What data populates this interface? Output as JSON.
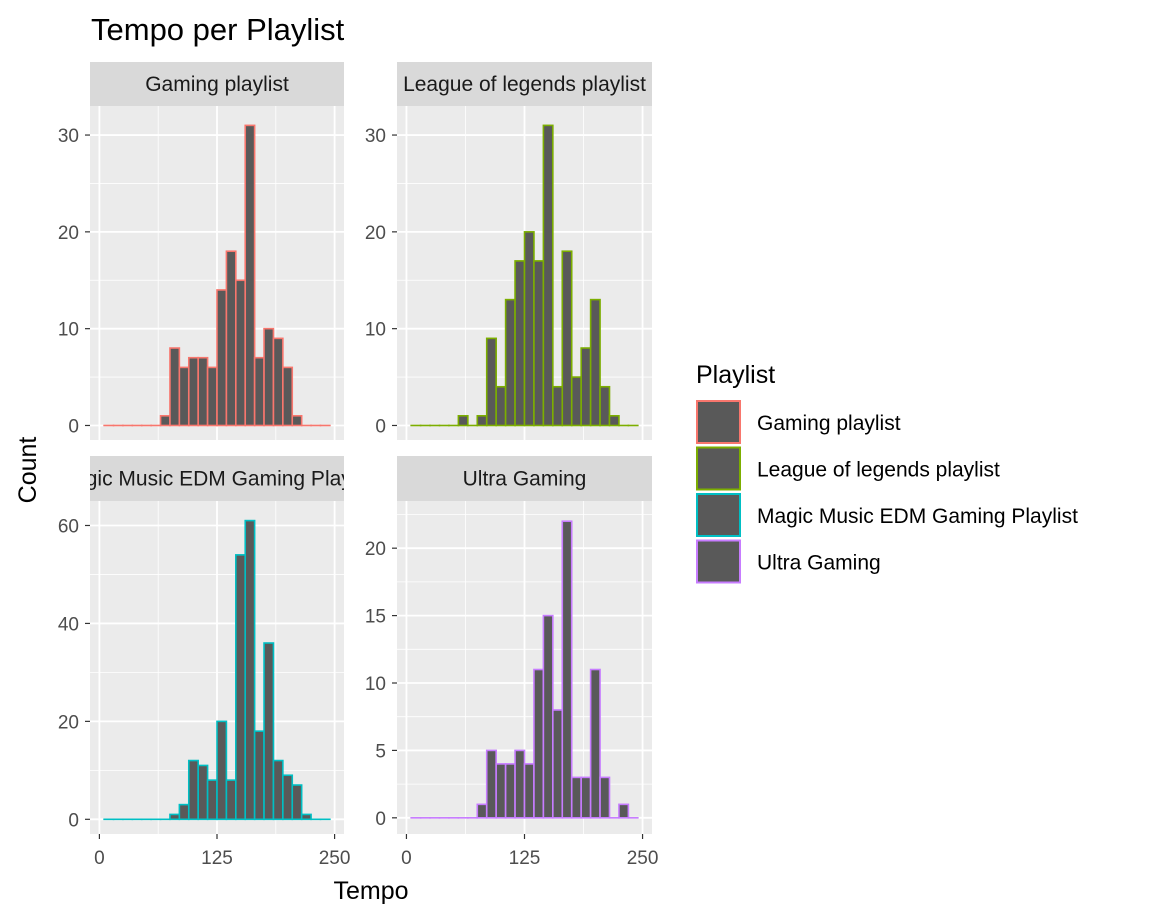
{
  "chart_data": {
    "type": "bar",
    "title": "Tempo per Playlist",
    "xlabel": "Tempo",
    "ylabel": "Count",
    "fill_color": "#595959",
    "panel_background": "#ebebeb",
    "strip_background": "#d9d9d9",
    "grid": true,
    "legend": {
      "title": "Playlist",
      "position": "right",
      "items": [
        {
          "label": "Gaming playlist",
          "color": "#F8766D"
        },
        {
          "label": "League of legends playlist",
          "color": "#7CAE00"
        },
        {
          "label": "Magic Music EDM Gaming Playlist",
          "color": "#00BFC4"
        },
        {
          "label": "Ultra Gaming",
          "color": "#C77CFF"
        }
      ]
    },
    "x": {
      "range": [
        -10,
        260
      ],
      "ticks": [
        0,
        125,
        250
      ],
      "tick_labels": [
        "0",
        "125",
        "250"
      ],
      "bin_width": 10,
      "bin_centers": [
        10,
        20,
        30,
        40,
        50,
        60,
        70,
        80,
        90,
        100,
        110,
        120,
        130,
        140,
        150,
        160,
        170,
        180,
        190,
        200,
        210,
        220,
        230,
        240
      ]
    },
    "facets": [
      {
        "strip": "Gaming playlist",
        "color": "#F8766D",
        "ylim": [
          -1.5,
          33
        ],
        "yticks": [
          0,
          10,
          20,
          30
        ],
        "values": [
          0,
          0,
          0,
          0,
          0,
          0,
          1,
          8,
          6,
          7,
          7,
          6,
          14,
          18,
          15,
          31,
          7,
          10,
          9,
          6,
          1,
          0,
          0,
          0
        ]
      },
      {
        "strip": "League of legends playlist",
        "color": "#7CAE00",
        "ylim": [
          -1.5,
          33
        ],
        "yticks": [
          0,
          10,
          20,
          30
        ],
        "values": [
          0,
          0,
          0,
          0,
          0,
          1,
          0,
          1,
          9,
          4,
          13,
          17,
          20,
          17,
          31,
          4,
          18,
          5,
          8,
          13,
          4,
          1,
          0,
          0
        ]
      },
      {
        "strip": "Magic Music EDM Gaming Playlist",
        "color": "#00BFC4",
        "ylim": [
          -3,
          65
        ],
        "yticks": [
          0,
          20,
          40,
          60
        ],
        "values": [
          0,
          0,
          0,
          0,
          0,
          0,
          0,
          1,
          3,
          12,
          11,
          8,
          20,
          8,
          54,
          61,
          18,
          36,
          12,
          9,
          7,
          1,
          0,
          0
        ]
      },
      {
        "strip": "Ultra Gaming",
        "color": "#C77CFF",
        "ylim": [
          -1.2,
          23.5
        ],
        "yticks": [
          0,
          5,
          10,
          15,
          20
        ],
        "ytick_labels": [
          "0",
          "5",
          "10",
          "15",
          "20"
        ],
        "values": [
          0,
          0,
          0,
          0,
          0,
          0,
          0,
          1,
          5,
          4,
          4,
          5,
          4,
          11,
          15,
          8,
          22,
          3,
          3,
          11,
          3,
          0,
          1,
          0
        ]
      }
    ]
  }
}
